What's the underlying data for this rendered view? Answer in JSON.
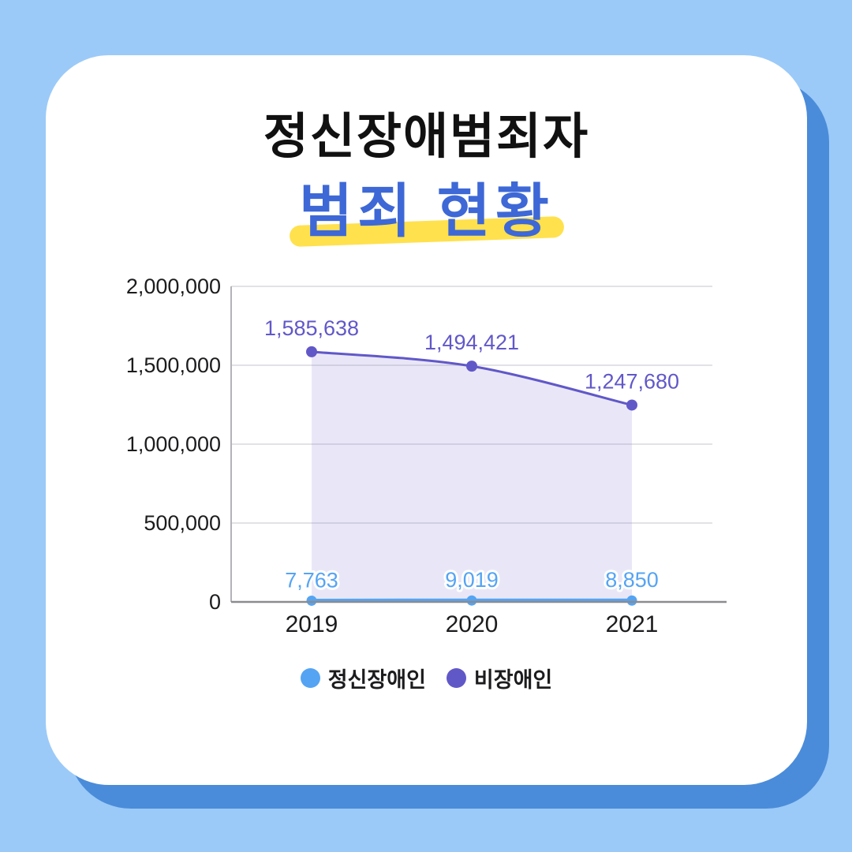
{
  "header": {
    "title": "정신장애범죄자",
    "subtitle": "범죄 현황",
    "title_color": "#111111",
    "subtitle_color": "#3e68d6",
    "highlight_color": "#ffe14d"
  },
  "theme": {
    "page_background": "#9bcaf8",
    "card_background": "#ffffff",
    "card_shadow": "#4a8cd9"
  },
  "chart_data": {
    "type": "area",
    "title": "정신장애범죄자 범죄 현황",
    "categories": [
      "2019",
      "2020",
      "2021"
    ],
    "series": [
      {
        "name": "정신장애인",
        "color": "#55a4f3",
        "values": [
          7763,
          9019,
          8850
        ],
        "area": false,
        "line_width": 5,
        "point_radius": 6.5,
        "label_outline": "#ffffff"
      },
      {
        "name": "비장애인",
        "color": "#6158c8",
        "values": [
          1585638,
          1494421,
          1247680
        ],
        "area": true,
        "area_color": "rgba(97, 88, 200, 0.14)",
        "line_width": 3,
        "point_radius": 7,
        "label_outline": "#ffffff"
      }
    ],
    "ylim": [
      0,
      2000000
    ],
    "yticks": [
      0,
      500000,
      1000000,
      1500000,
      2000000
    ],
    "xlabel": "",
    "ylabel": "",
    "grid": true,
    "grid_color": "#d9d9de",
    "axis_color": "#8b8b90",
    "tick_label_color": "#1c1c1e",
    "value_labels": true,
    "legend_position": "bottom"
  }
}
